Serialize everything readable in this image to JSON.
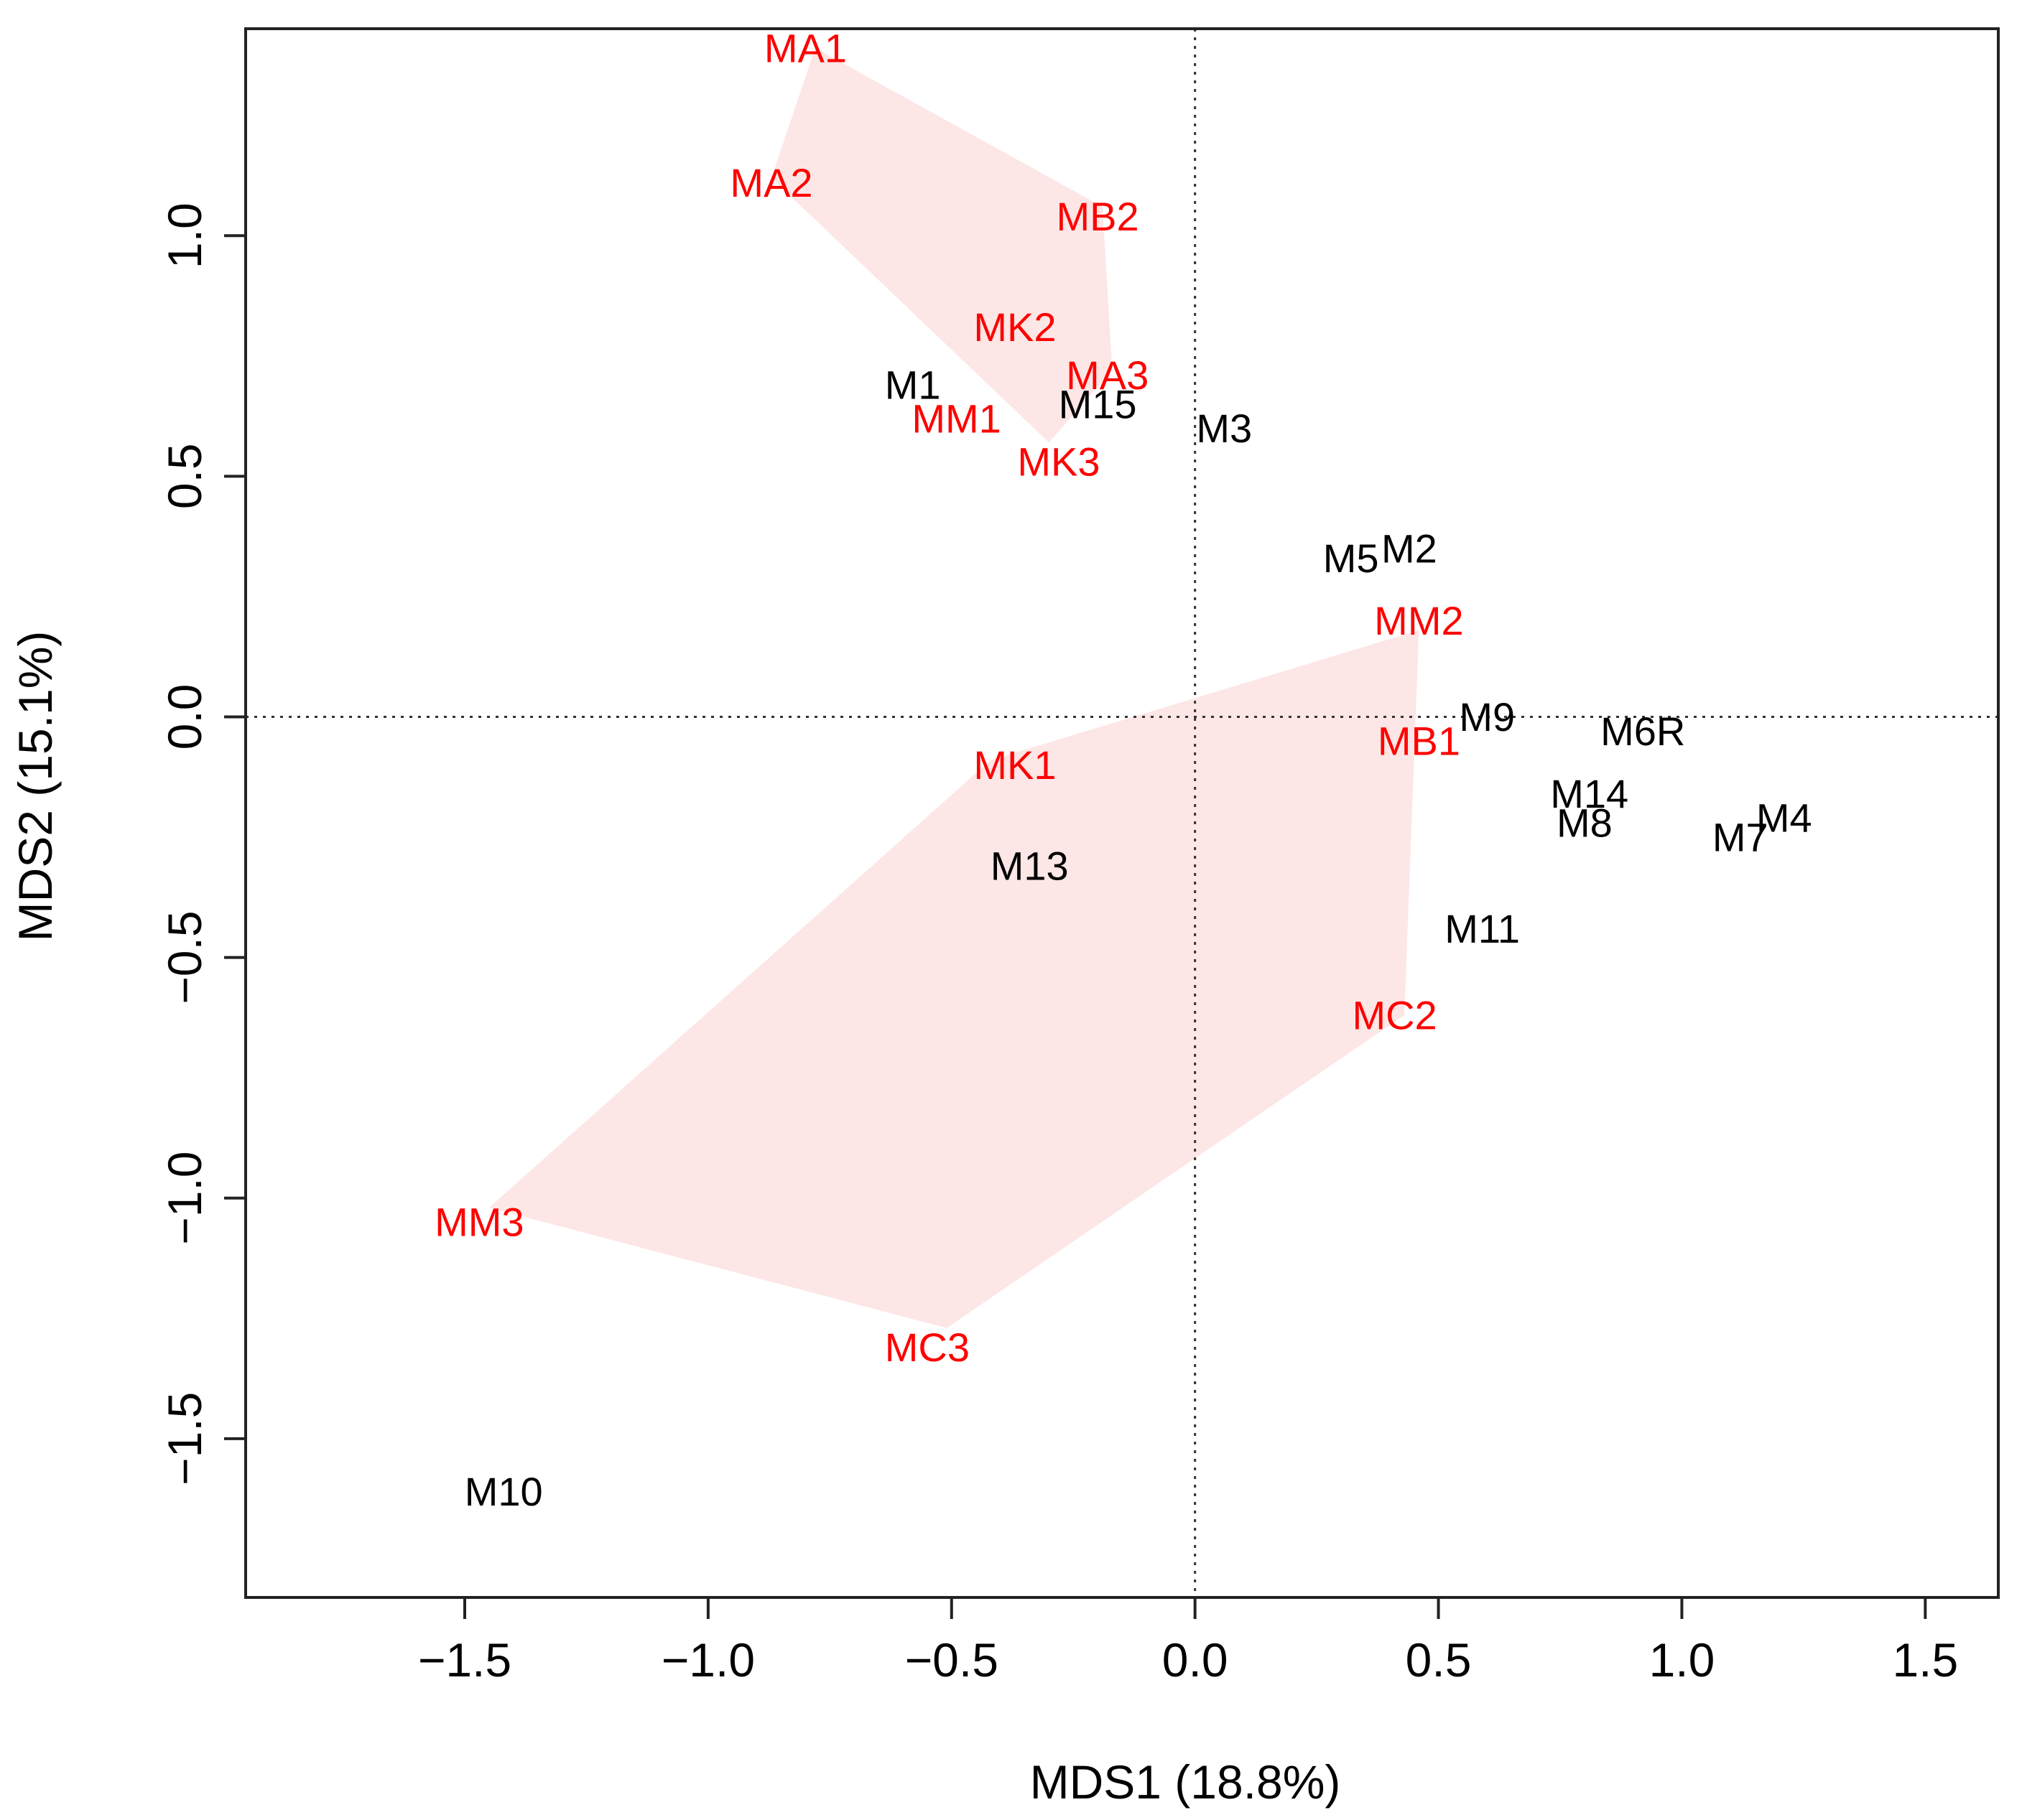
{
  "chart_data": {
    "type": "scatter",
    "title": "",
    "xlabel": "MDS1 (18.8%)",
    "ylabel": "MDS2 (15.1%)",
    "xlim": [
      -1.95,
      1.65
    ],
    "ylim": [
      -1.83,
      1.43
    ],
    "xticks": [
      -1.5,
      -1.0,
      -0.5,
      0.0,
      0.5,
      1.0,
      1.5
    ],
    "xtick_labels": [
      "−1.5",
      "−1.0",
      "−0.5",
      "0.0",
      "0.5",
      "1.0",
      "1.5"
    ],
    "yticks": [
      -1.5,
      -1.0,
      -0.5,
      0.0,
      0.5,
      1.0
    ],
    "ytick_labels": [
      "−1.5",
      "−1.0",
      "−0.5",
      "0.0",
      "0.5",
      "1.0"
    ],
    "reference_lines": {
      "x": 0,
      "y": 0,
      "style": "dotted"
    },
    "grid": false,
    "colors": {
      "group_label": "#ff0000",
      "other_label": "#000000",
      "hull_fill": "#fde6e6"
    },
    "hulls": [
      {
        "name": "upper",
        "vertices": [
          [
            -0.78,
            1.39
          ],
          [
            -0.87,
            1.12
          ],
          [
            -0.3,
            0.57
          ],
          [
            -0.17,
            0.72
          ],
          [
            -0.19,
            1.06
          ]
        ]
      },
      {
        "name": "lower",
        "vertices": [
          [
            -1.45,
            -1.02
          ],
          [
            -0.51,
            -1.27
          ],
          [
            0.43,
            -0.62
          ],
          [
            0.46,
            0.18
          ],
          [
            -0.42,
            -0.09
          ]
        ]
      }
    ],
    "points": [
      {
        "label": "MA1",
        "x": -0.8,
        "y": 1.39,
        "group": "red"
      },
      {
        "label": "MA2",
        "x": -0.87,
        "y": 1.11,
        "group": "red"
      },
      {
        "label": "MB2",
        "x": -0.2,
        "y": 1.04,
        "group": "red"
      },
      {
        "label": "MK2",
        "x": -0.37,
        "y": 0.81,
        "group": "red"
      },
      {
        "label": "MA3",
        "x": -0.18,
        "y": 0.71,
        "group": "red"
      },
      {
        "label": "M1",
        "x": -0.58,
        "y": 0.69,
        "group": "black"
      },
      {
        "label": "M15",
        "x": -0.2,
        "y": 0.65,
        "group": "black"
      },
      {
        "label": "MM1",
        "x": -0.49,
        "y": 0.62,
        "group": "red"
      },
      {
        "label": "M3",
        "x": 0.06,
        "y": 0.6,
        "group": "black"
      },
      {
        "label": "MK3",
        "x": -0.28,
        "y": 0.53,
        "group": "red"
      },
      {
        "label": "M5",
        "x": 0.32,
        "y": 0.33,
        "group": "black"
      },
      {
        "label": "M2",
        "x": 0.44,
        "y": 0.35,
        "group": "black"
      },
      {
        "label": "MM2",
        "x": 0.46,
        "y": 0.2,
        "group": "red"
      },
      {
        "label": "M9",
        "x": 0.6,
        "y": 0.0,
        "group": "black"
      },
      {
        "label": "M6R",
        "x": 0.92,
        "y": -0.03,
        "group": "black"
      },
      {
        "label": "MB1",
        "x": 0.46,
        "y": -0.05,
        "group": "red"
      },
      {
        "label": "MK1",
        "x": -0.37,
        "y": -0.1,
        "group": "red"
      },
      {
        "label": "M14",
        "x": 0.81,
        "y": -0.16,
        "group": "black"
      },
      {
        "label": "M8",
        "x": 0.8,
        "y": -0.22,
        "group": "black"
      },
      {
        "label": "M4",
        "x": 1.21,
        "y": -0.21,
        "group": "black"
      },
      {
        "label": "M7",
        "x": 1.12,
        "y": -0.25,
        "group": "black"
      },
      {
        "label": "M13",
        "x": -0.34,
        "y": -0.31,
        "group": "black"
      },
      {
        "label": "M11",
        "x": 0.59,
        "y": -0.44,
        "group": "black"
      },
      {
        "label": "MC2",
        "x": 0.41,
        "y": -0.62,
        "group": "red"
      },
      {
        "label": "MM3",
        "x": -1.47,
        "y": -1.05,
        "group": "red"
      },
      {
        "label": "MC3",
        "x": -0.55,
        "y": -1.31,
        "group": "red"
      },
      {
        "label": "M10",
        "x": -1.42,
        "y": -1.61,
        "group": "black"
      }
    ]
  }
}
